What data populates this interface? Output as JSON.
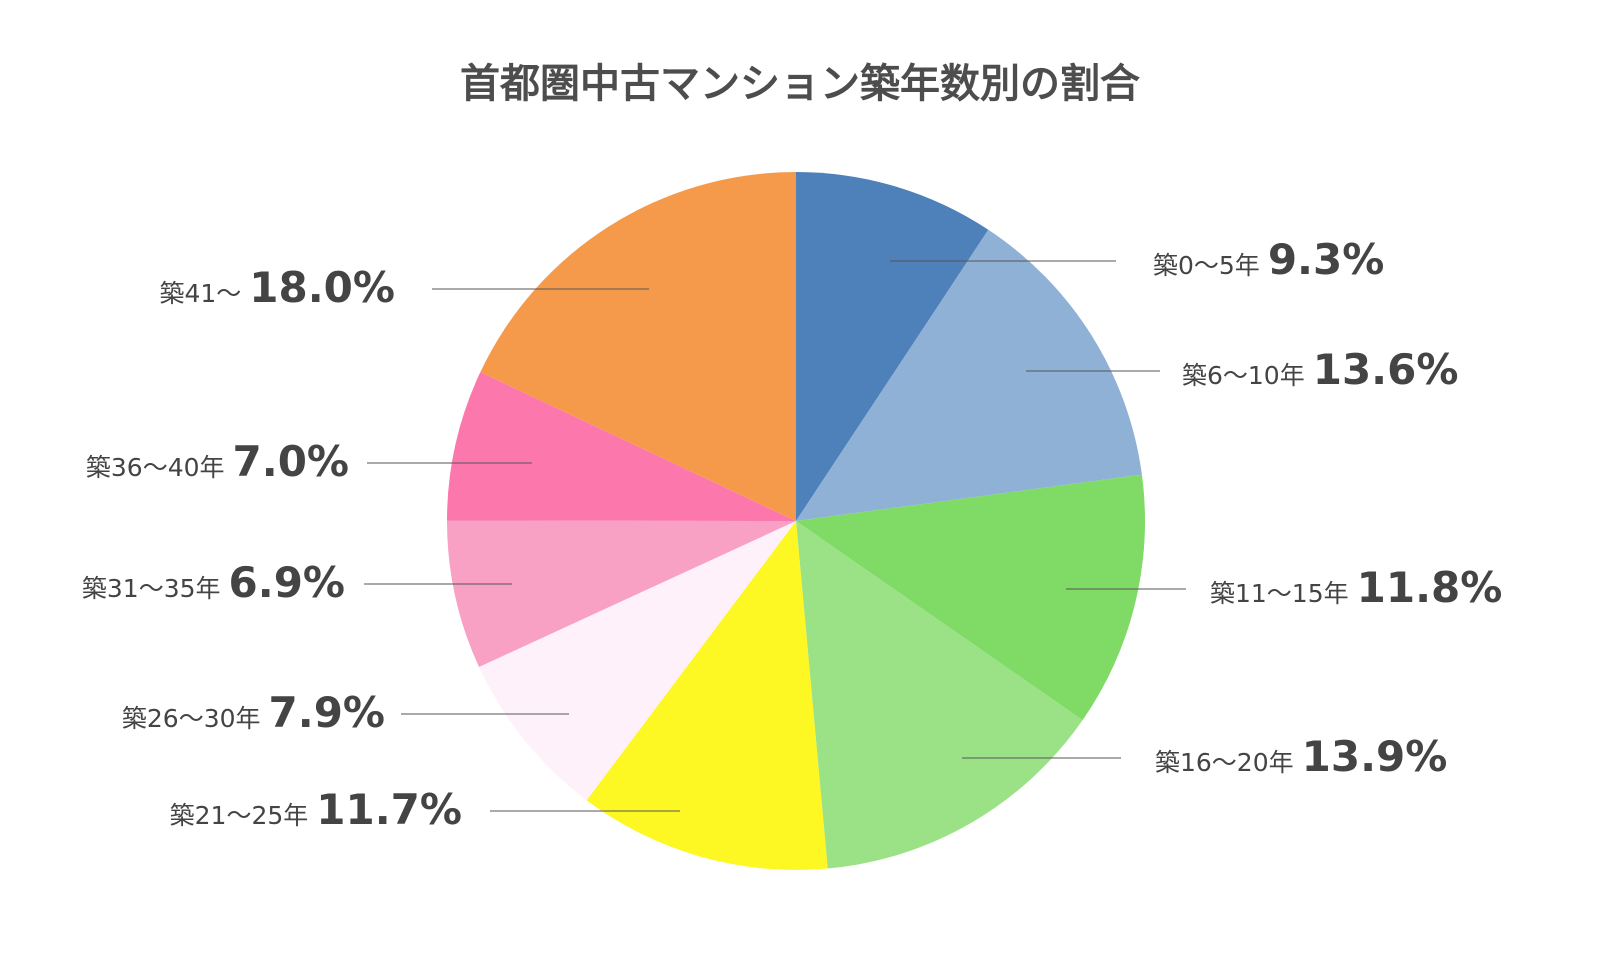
{
  "chart_data": {
    "type": "pie",
    "title": "首都圏中古マンション築年数別の割合",
    "categories": [
      "築0〜5年",
      "築6〜10年",
      "築11〜15年",
      "築16〜20年",
      "築21〜25年",
      "築26〜30年",
      "築31〜35年",
      "築36〜40年",
      "築41〜"
    ],
    "values": [
      9.3,
      13.6,
      11.8,
      13.9,
      11.7,
      7.9,
      6.9,
      7.0,
      18.0
    ],
    "value_labels": [
      "9.3%",
      "13.6%",
      "11.8%",
      "13.9%",
      "11.7%",
      "7.9%",
      "6.9%",
      "7.0%",
      "18.0%"
    ],
    "colors": [
      "#4e80b9",
      "#90b1d6",
      "#7fda66",
      "#9be287",
      "#fdf723",
      "#fff1fa",
      "#f8a1c4",
      "#fc77ab",
      "#f59a4a"
    ],
    "start_angle": "12 o'clock",
    "direction": "clockwise",
    "legend": "none"
  }
}
